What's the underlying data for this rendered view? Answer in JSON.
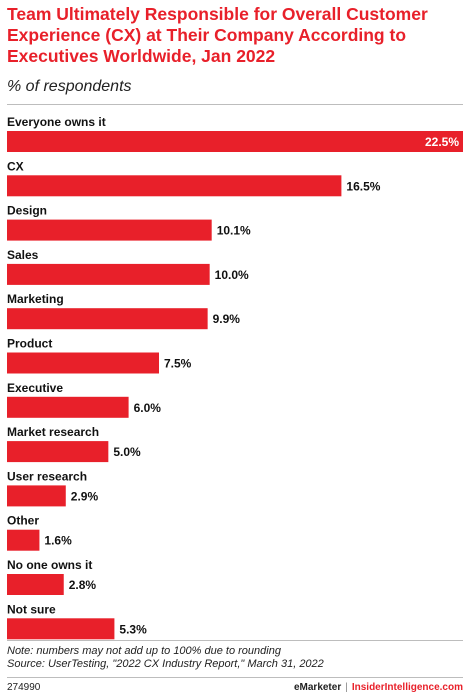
{
  "title": "Team Ultimately Responsible for Overall Customer Experience (CX) at Their Company According to Executives Worldwide, Jan 2022",
  "subtitle": "% of respondents",
  "colors": {
    "bar": "#e8202a",
    "title": "#e8202a"
  },
  "chart_data": {
    "type": "bar",
    "orientation": "horizontal",
    "unit": "%",
    "categories": [
      "Everyone owns it",
      "CX",
      "Design",
      "Sales",
      "Marketing",
      "Product",
      "Executive",
      "Market research",
      "User research",
      "Other",
      "No one owns it",
      "Not sure"
    ],
    "values": [
      22.5,
      16.5,
      10.1,
      10.0,
      9.9,
      7.5,
      6.0,
      5.0,
      2.9,
      1.6,
      2.8,
      5.3
    ],
    "value_labels": [
      "22.5%",
      "16.5%",
      "10.1%",
      "10.0%",
      "9.9%",
      "7.5%",
      "6.0%",
      "5.0%",
      "2.9%",
      "1.6%",
      "2.8%",
      "5.3%"
    ],
    "xlim": [
      0,
      22.5
    ],
    "grid": false,
    "legend": "none"
  },
  "notes": {
    "note": "Note: numbers may not add up to 100% due to rounding",
    "source": "Source: UserTesting, \"2022 CX Industry Report,\" March 31, 2022"
  },
  "footer": {
    "chart_id": "274990",
    "brand_primary": "eMarketer",
    "separator": "|",
    "brand_secondary": "InsiderIntelligence.com"
  }
}
